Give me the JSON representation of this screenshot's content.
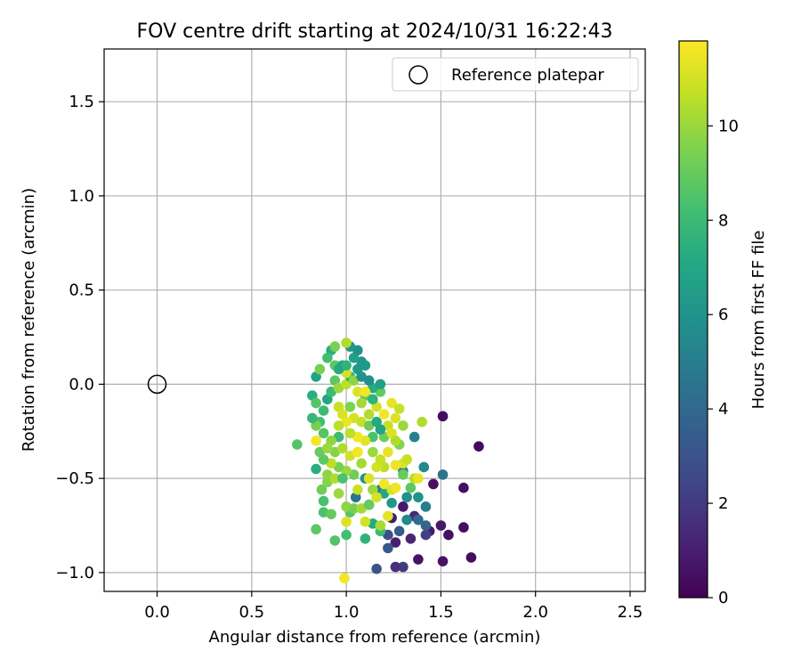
{
  "chart_data": {
    "type": "scatter",
    "title": "FOV centre drift starting at 2024/10/31 16:22:43",
    "xlabel": "Angular distance from reference (arcmin)",
    "ylabel": "Rotation from reference (arcmin)",
    "xlim": [
      -0.28,
      2.58
    ],
    "ylim": [
      -1.1,
      1.78
    ],
    "xticks": [
      0.0,
      0.5,
      1.0,
      1.5,
      2.0,
      2.5
    ],
    "xtick_labels": [
      "0.0",
      "0.5",
      "1.0",
      "1.5",
      "2.0",
      "2.5"
    ],
    "yticks": [
      -1.0,
      -0.5,
      0.0,
      0.5,
      1.0,
      1.5
    ],
    "ytick_labels": [
      "−1.0",
      "−0.5",
      "0.0",
      "0.5",
      "1.0",
      "1.5"
    ],
    "grid": true,
    "legend": {
      "placement": "top-right",
      "entries": [
        "Reference platepar"
      ]
    },
    "reference_point": {
      "x": 0.0,
      "y": 0.0,
      "marker": "open-circle",
      "color": "#000000"
    },
    "colorbar": {
      "label": "Hours from first FF file",
      "colormap": "viridis",
      "range": [
        0,
        11.8
      ],
      "ticks": [
        0,
        2,
        4,
        6,
        8,
        10
      ],
      "tick_labels": [
        "0",
        "2",
        "4",
        "6",
        "8",
        "10"
      ]
    },
    "series": [
      {
        "points": [
          [
            1.51,
            -0.17,
            0.4
          ],
          [
            1.7,
            -0.33,
            0.3
          ],
          [
            1.62,
            -0.55,
            0.5
          ],
          [
            1.66,
            -0.92,
            0.4
          ],
          [
            1.51,
            -0.94,
            0.6
          ],
          [
            1.62,
            -0.76,
            0.5
          ],
          [
            1.54,
            -0.8,
            0.5
          ],
          [
            1.5,
            -0.75,
            0.7
          ],
          [
            1.44,
            -0.78,
            0.8
          ],
          [
            1.46,
            -0.53,
            0.5
          ],
          [
            1.38,
            -0.93,
            0.6
          ],
          [
            1.3,
            -0.97,
            2.0
          ],
          [
            1.26,
            -0.97,
            1.6
          ],
          [
            1.34,
            -0.82,
            1.2
          ],
          [
            1.26,
            -0.84,
            1.0
          ],
          [
            1.24,
            -0.71,
            0.9
          ],
          [
            1.3,
            -0.65,
            0.8
          ],
          [
            1.36,
            -0.7,
            1.4
          ],
          [
            1.42,
            -0.8,
            2.2
          ],
          [
            1.22,
            -0.8,
            2.8
          ],
          [
            1.22,
            -0.87,
            3.2
          ],
          [
            1.16,
            -0.98,
            3.0
          ],
          [
            1.28,
            -0.78,
            3.4
          ],
          [
            1.42,
            -0.75,
            3.8
          ],
          [
            1.38,
            -0.72,
            4.2
          ],
          [
            1.51,
            -0.48,
            4.5
          ],
          [
            1.42,
            -0.65,
            5.0
          ],
          [
            1.32,
            -0.72,
            5.5
          ],
          [
            1.41,
            -0.44,
            5.5
          ],
          [
            1.32,
            -0.6,
            5.8
          ],
          [
            1.38,
            -0.6,
            6.0
          ],
          [
            1.3,
            -0.46,
            5.6
          ],
          [
            1.36,
            -0.28,
            5.2
          ],
          [
            1.05,
            -0.6,
            4.4
          ],
          [
            1.12,
            -0.64,
            5.0
          ],
          [
            1.18,
            -0.56,
            4.6
          ],
          [
            1.1,
            -0.5,
            6.0
          ],
          [
            1.24,
            -0.63,
            6.2
          ],
          [
            1.14,
            -0.74,
            7.2
          ],
          [
            1.2,
            -0.58,
            7.0
          ],
          [
            1.18,
            -0.78,
            8.0
          ],
          [
            1.1,
            -0.82,
            7.6
          ],
          [
            1.0,
            -0.8,
            8.2
          ],
          [
            0.94,
            -0.83,
            8.6
          ],
          [
            0.84,
            -0.77,
            8.8
          ],
          [
            0.88,
            -0.68,
            8.4
          ],
          [
            0.92,
            -0.69,
            9.0
          ],
          [
            1.02,
            -0.68,
            8.6
          ],
          [
            0.88,
            -0.62,
            8.3
          ],
          [
            0.84,
            -0.45,
            7.4
          ],
          [
            0.74,
            -0.32,
            8.6
          ],
          [
            0.87,
            -0.56,
            9.2
          ],
          [
            0.9,
            -0.52,
            9.6
          ],
          [
            0.96,
            -0.58,
            10.0
          ],
          [
            1.0,
            -0.65,
            9.8
          ],
          [
            1.04,
            -0.66,
            9.4
          ],
          [
            1.08,
            -0.66,
            10.2
          ],
          [
            1.12,
            -0.64,
            9.0
          ],
          [
            1.18,
            -0.75,
            10.2
          ],
          [
            1.0,
            -0.73,
            11.2
          ],
          [
            1.1,
            -0.73,
            11.0
          ],
          [
            1.22,
            -0.7,
            11.3
          ],
          [
            0.99,
            -1.03,
            11.6
          ],
          [
            1.24,
            -0.56,
            11.0
          ],
          [
            1.26,
            -0.55,
            11.5
          ],
          [
            1.2,
            -0.53,
            11.6
          ],
          [
            1.3,
            -0.48,
            9.0
          ],
          [
            1.34,
            -0.55,
            8.8
          ],
          [
            1.36,
            -0.5,
            10.5
          ],
          [
            1.38,
            -0.5,
            11.4
          ],
          [
            1.3,
            -0.42,
            11.2
          ],
          [
            1.26,
            -0.43,
            11.5
          ],
          [
            1.32,
            -0.4,
            10.8
          ],
          [
            1.4,
            -0.2,
            10.4
          ],
          [
            1.2,
            -0.44,
            10.6
          ],
          [
            1.16,
            -0.44,
            11.0
          ],
          [
            1.22,
            -0.36,
            11.4
          ],
          [
            1.2,
            -0.28,
            9.2
          ],
          [
            1.28,
            -0.32,
            9.6
          ],
          [
            1.26,
            -0.18,
            11.2
          ],
          [
            1.3,
            -0.22,
            10.0
          ],
          [
            1.24,
            -0.1,
            11.4
          ],
          [
            1.28,
            -0.13,
            10.8
          ],
          [
            1.18,
            -0.04,
            9.0
          ],
          [
            1.14,
            -0.02,
            7.2
          ],
          [
            1.18,
            0.0,
            6.6
          ],
          [
            1.1,
            -0.06,
            8.8
          ],
          [
            1.06,
            -0.04,
            11.2
          ],
          [
            1.1,
            -0.04,
            11.6
          ],
          [
            1.08,
            -0.1,
            10.2
          ],
          [
            1.02,
            -0.12,
            9.5
          ],
          [
            1.04,
            -0.18,
            11.0
          ],
          [
            1.08,
            -0.2,
            10.8
          ],
          [
            1.12,
            -0.22,
            9.2
          ],
          [
            1.14,
            -0.28,
            8.4
          ],
          [
            1.1,
            -0.3,
            11.3
          ],
          [
            1.06,
            -0.28,
            11.6
          ],
          [
            1.0,
            -0.2,
            11.5
          ],
          [
            0.96,
            -0.22,
            10.6
          ],
          [
            0.96,
            -0.28,
            8.0
          ],
          [
            0.92,
            -0.3,
            9.8
          ],
          [
            0.88,
            -0.26,
            8.6
          ],
          [
            0.86,
            -0.2,
            8.2
          ],
          [
            0.84,
            -0.22,
            9.4
          ],
          [
            0.84,
            -0.3,
            11.6
          ],
          [
            0.82,
            -0.18,
            7.8
          ],
          [
            0.82,
            -0.06,
            7.4
          ],
          [
            0.84,
            0.04,
            6.8
          ],
          [
            0.86,
            0.08,
            9.4
          ],
          [
            0.84,
            -0.1,
            8.6
          ],
          [
            0.88,
            -0.14,
            8.0
          ],
          [
            0.9,
            -0.08,
            7.0
          ],
          [
            0.92,
            -0.04,
            8.0
          ],
          [
            0.94,
            0.02,
            8.8
          ],
          [
            0.96,
            -0.02,
            10.0
          ],
          [
            1.0,
            0.0,
            10.6
          ],
          [
            1.02,
            0.04,
            7.6
          ],
          [
            1.0,
            0.06,
            11.0
          ],
          [
            1.04,
            0.02,
            9.8
          ],
          [
            1.06,
            0.08,
            6.4
          ],
          [
            1.08,
            0.12,
            6.2
          ],
          [
            1.04,
            0.14,
            6.6
          ],
          [
            1.06,
            0.18,
            6.0
          ],
          [
            1.02,
            0.2,
            6.2
          ],
          [
            1.0,
            0.22,
            10.4
          ],
          [
            0.92,
            0.18,
            7.4
          ],
          [
            0.94,
            0.2,
            9.4
          ],
          [
            0.9,
            0.14,
            8.2
          ],
          [
            0.94,
            0.1,
            8.8
          ],
          [
            0.96,
            0.08,
            7.2
          ],
          [
            0.98,
            0.1,
            7.0
          ],
          [
            1.0,
            0.1,
            7.6
          ],
          [
            1.08,
            0.04,
            6.0
          ],
          [
            1.12,
            0.02,
            5.8
          ],
          [
            1.1,
            0.1,
            6.4
          ],
          [
            0.96,
            -0.12,
            10.8
          ],
          [
            0.98,
            -0.16,
            11.2
          ],
          [
            1.02,
            -0.26,
            10.6
          ],
          [
            0.94,
            -0.36,
            9.6
          ],
          [
            0.98,
            -0.34,
            10.4
          ],
          [
            1.02,
            -0.38,
            11.0
          ],
          [
            1.06,
            -0.36,
            11.6
          ],
          [
            1.08,
            -0.42,
            10.2
          ],
          [
            1.04,
            -0.48,
            9.2
          ],
          [
            1.0,
            -0.46,
            10.0
          ],
          [
            0.96,
            -0.44,
            9.4
          ],
          [
            0.92,
            -0.42,
            10.6
          ],
          [
            0.88,
            -0.4,
            8.8
          ],
          [
            0.86,
            -0.36,
            9.0
          ],
          [
            0.9,
            -0.48,
            9.8
          ],
          [
            0.94,
            -0.5,
            10.4
          ],
          [
            1.06,
            -0.56,
            10.8
          ],
          [
            1.12,
            -0.5,
            11.2
          ],
          [
            1.14,
            -0.56,
            10.0
          ],
          [
            1.16,
            -0.6,
            11.0
          ],
          [
            1.18,
            -0.4,
            10.8
          ],
          [
            1.14,
            -0.36,
            10.0
          ],
          [
            1.12,
            -0.16,
            10.4
          ],
          [
            1.16,
            -0.12,
            11.0
          ],
          [
            1.2,
            -0.16,
            11.6
          ],
          [
            1.22,
            -0.22,
            10.8
          ],
          [
            1.24,
            -0.26,
            11.2
          ],
          [
            1.26,
            -0.3,
            10.4
          ],
          [
            1.16,
            -0.2,
            7.2
          ],
          [
            1.18,
            -0.24,
            6.8
          ],
          [
            1.14,
            -0.08,
            7.6
          ],
          [
            0.98,
            -0.5,
            8.4
          ],
          [
            0.9,
            -0.34,
            10.0
          ]
        ]
      }
    ]
  }
}
